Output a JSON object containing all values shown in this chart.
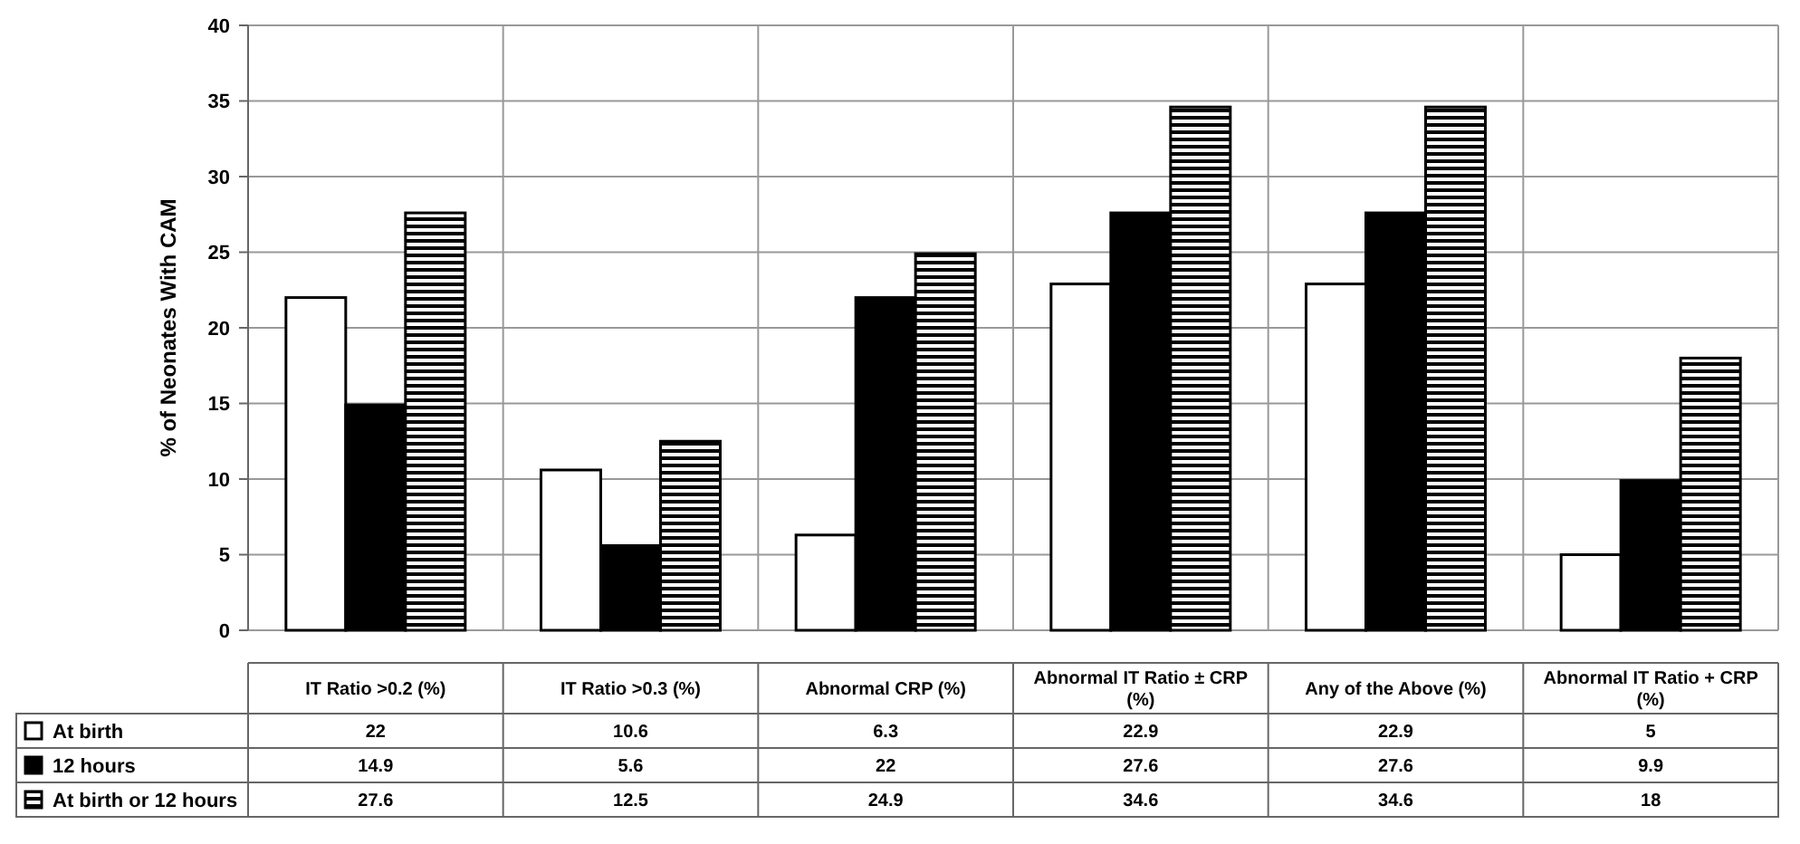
{
  "chart_data": {
    "type": "bar",
    "ylabel": "% of Neonates With CAM",
    "categories": [
      "IT Ratio >0.2 (%)",
      "IT Ratio >0.3 (%)",
      "Abnormal CRP (%)",
      "Abnormal IT Ratio ± CRP (%)",
      "Any of the Above (%)",
      "Abnormal IT Ratio + CRP (%)"
    ],
    "series": [
      {
        "name": "At birth",
        "color": "#ffffff",
        "values": [
          22,
          10.6,
          6.3,
          22.9,
          22.9,
          5
        ]
      },
      {
        "name": "12 hours",
        "color": "#000000",
        "values": [
          14.9,
          5.6,
          22,
          27.6,
          27.6,
          9.9
        ]
      },
      {
        "name": "At birth or 12 hours",
        "color": "#000000",
        "values": [
          27.6,
          12.5,
          24.9,
          34.6,
          34.6,
          18
        ]
      }
    ],
    "ylim": [
      0,
      40
    ],
    "yticks": [
      0,
      5,
      10,
      15,
      20,
      25,
      30,
      35,
      40
    ],
    "grid": "y",
    "data_labels": true,
    "legend": "bottom"
  }
}
